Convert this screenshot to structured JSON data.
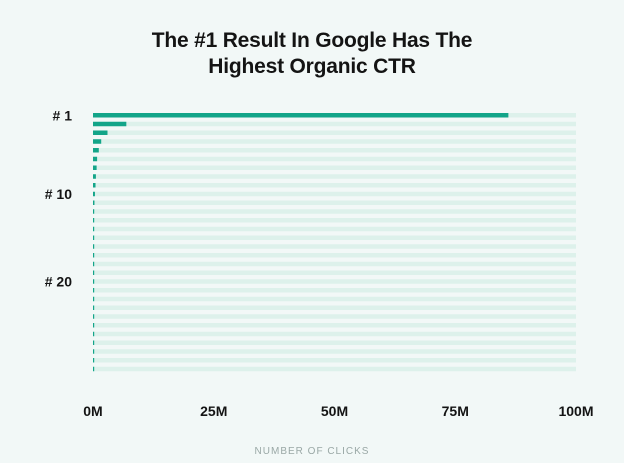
{
  "chart_data": {
    "type": "bar",
    "orientation": "horizontal",
    "title_lines": [
      "The #1 Result In Google Has The",
      "Highest Organic CTR"
    ],
    "xlabel": "NUMBER OF CLICKS",
    "ylabel": "",
    "xlim": [
      0,
      100000000
    ],
    "x_tick_labels": [
      "0M",
      "25M",
      "50M",
      "75M",
      "100M"
    ],
    "x_tick_values": [
      0,
      25000000,
      50000000,
      75000000,
      100000000
    ],
    "y_tick_labels": [
      {
        "label": "# 1",
        "position": 1
      },
      {
        "label": "# 10",
        "position": 10
      },
      {
        "label": "# 20",
        "position": 20
      }
    ],
    "categories": [
      1,
      2,
      3,
      4,
      5,
      6,
      7,
      8,
      9,
      10,
      11,
      12,
      13,
      14,
      15,
      16,
      17,
      18,
      19,
      20,
      21,
      22,
      23,
      24,
      25,
      26,
      27,
      28,
      29,
      30
    ],
    "values": [
      86000000,
      6900000,
      3000000,
      1700000,
      1200000,
      850000,
      750000,
      600000,
      520000,
      400000,
      300000,
      250000,
      200000,
      180000,
      150000,
      110000,
      90000,
      70000,
      50000,
      40000,
      30000,
      25000,
      20000,
      15000,
      12000,
      10000,
      8000,
      6000,
      5000,
      4000
    ],
    "background_bars": true,
    "grid": false,
    "legend": "none",
    "colors": {
      "bar": "#13a589",
      "track": "#ddf1eb",
      "background": "#f2f8f7",
      "text": "#141414",
      "axis_title": "#9aa8a6"
    }
  }
}
